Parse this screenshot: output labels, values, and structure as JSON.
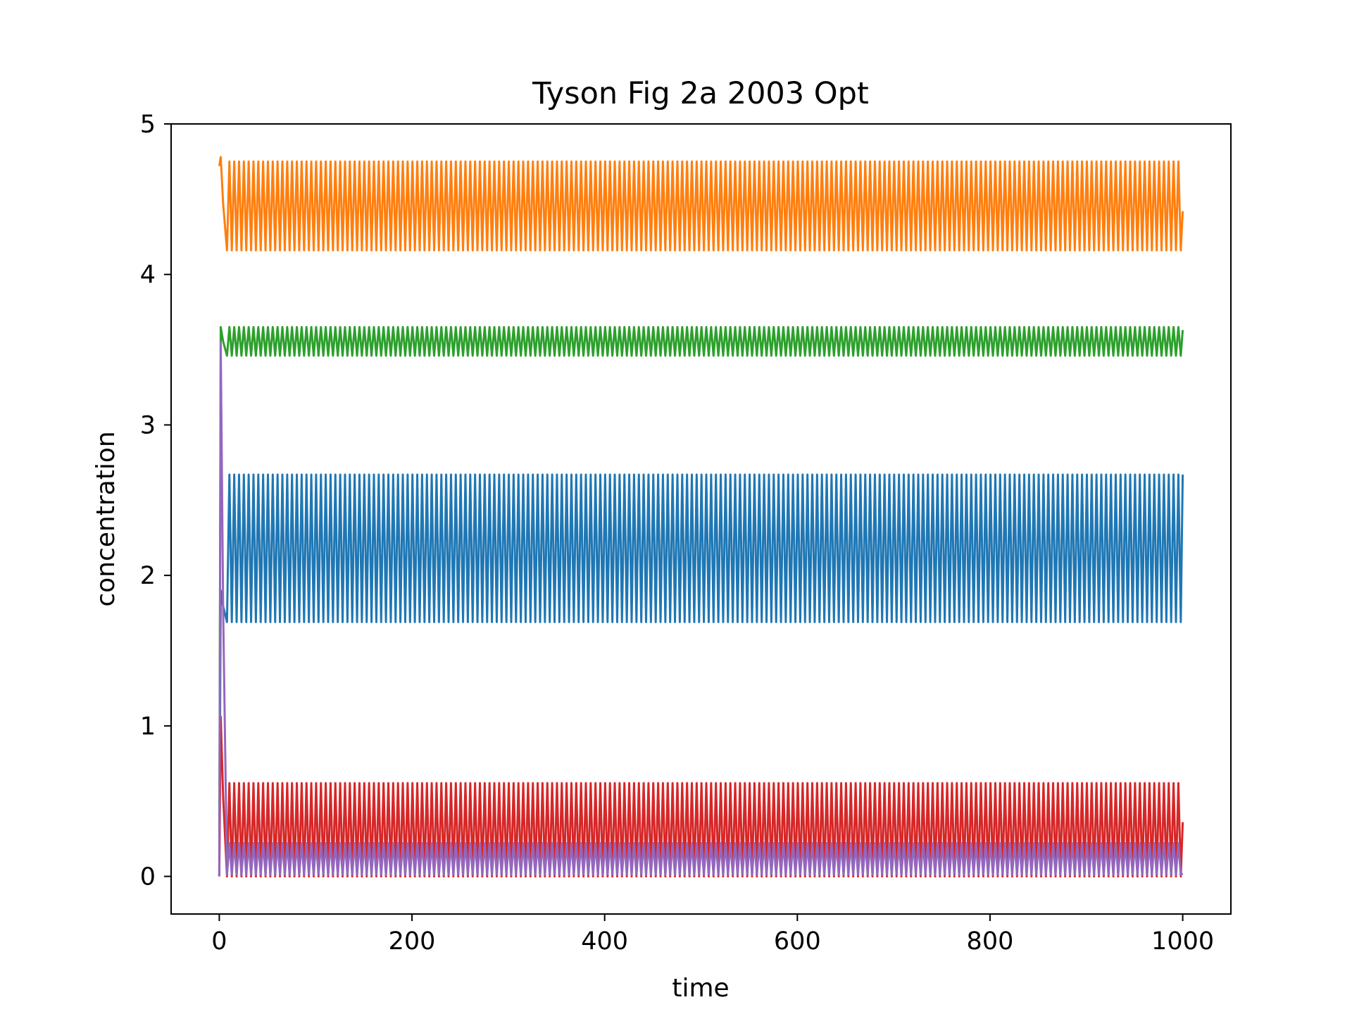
{
  "chart_data": {
    "type": "line",
    "title": "Tyson Fig 2a 2003 Opt",
    "xlabel": "time",
    "ylabel": "concentration",
    "xlim": [
      -50,
      1050
    ],
    "ylim": [
      -0.25,
      5.0
    ],
    "xticks": [
      0,
      200,
      400,
      600,
      800,
      1000
    ],
    "yticks": [
      0,
      1,
      2,
      3,
      4,
      5
    ],
    "grid": false,
    "legend": "none",
    "series": [
      {
        "color": "#1f77b4",
        "initial": 0.0,
        "transient_peak": 1.9,
        "osc_min": 1.69,
        "osc_max": 2.67,
        "end_value": 2.67
      },
      {
        "color": "#ff7f0e",
        "initial": 4.72,
        "transient_peak": 4.78,
        "osc_min": 4.16,
        "osc_max": 4.75,
        "end_value": 4.42
      },
      {
        "color": "#2ca02c",
        "initial": 0.1,
        "transient_peak": 3.65,
        "osc_min": 3.46,
        "osc_max": 3.65,
        "end_value": 3.63
      },
      {
        "color": "#d62728",
        "initial": 0.0,
        "transient_peak": 1.06,
        "osc_min": 0.0,
        "osc_max": 0.62,
        "end_value": 0.36
      },
      {
        "color": "#9467bd",
        "initial": 0.0,
        "transient_peak": 3.55,
        "osc_min": 0.01,
        "osc_max": 0.22,
        "end_value": 0.02
      }
    ],
    "t_start": 0,
    "t_end": 1000,
    "period": 5.0
  }
}
